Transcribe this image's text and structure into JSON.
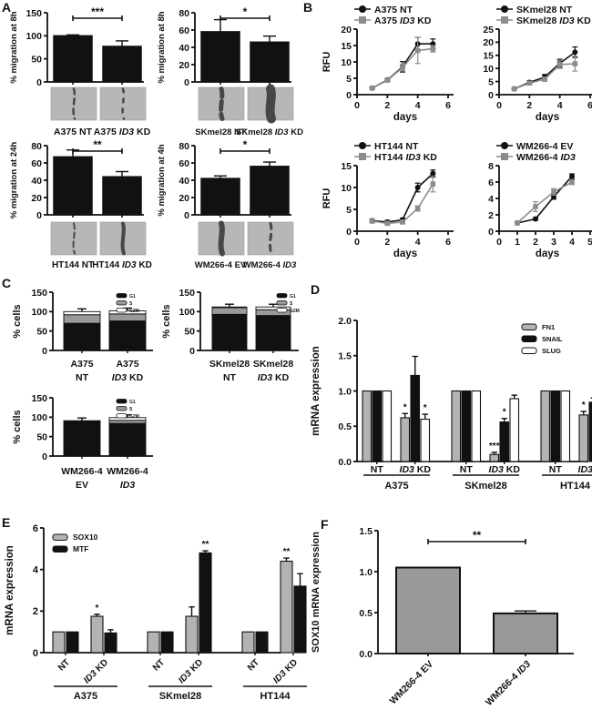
{
  "figure": {
    "panel_labels": {
      "A": "A",
      "B": "B",
      "C": "C",
      "D": "D",
      "E": "E",
      "F": "F"
    }
  },
  "chart_data": [
    {
      "panel": "A",
      "type": "bar",
      "subcharts": [
        {
          "ylabel": "% migration at 8h",
          "ylim": [
            0,
            150
          ],
          "yticks": [
            "0",
            "50",
            "100",
            "150"
          ],
          "sig": "***",
          "bars": [
            {
              "label": "A375 NT",
              "value": 100,
              "err": 2
            },
            {
              "label": "A375 ID3 KD",
              "value": 77,
              "err": 12
            }
          ],
          "images": [
            "wound-image-a375-nt",
            "wound-image-a375-id3-kd"
          ]
        },
        {
          "ylabel": "% migration at 8h",
          "ylim": [
            0,
            80
          ],
          "yticks": [
            "0",
            "20",
            "40",
            "60",
            "80"
          ],
          "sig": "*",
          "bars": [
            {
              "label": "SKmel28 NT",
              "value": 58,
              "err": 14
            },
            {
              "label": "SKmel28 ID3 KD",
              "value": 46,
              "err": 7
            }
          ],
          "images": [
            "wound-image-skmel28-nt",
            "wound-image-skmel28-id3-kd"
          ]
        },
        {
          "ylabel": "% migration at 24h",
          "ylim": [
            0,
            80
          ],
          "yticks": [
            "0",
            "20",
            "40",
            "60",
            "80"
          ],
          "sig": "**",
          "bars": [
            {
              "label": "HT144 NT",
              "value": 67,
              "err": 8
            },
            {
              "label": "HT144 ID3 KD",
              "value": 44,
              "err": 6
            }
          ],
          "images": [
            "wound-image-ht144-nt",
            "wound-image-ht144-id3-kd"
          ]
        },
        {
          "ylabel": "% migration at 4h",
          "ylim": [
            0,
            80
          ],
          "yticks": [
            "0",
            "20",
            "40",
            "60",
            "80"
          ],
          "sig": "*",
          "bars": [
            {
              "label": "WM266-4 EV",
              "value": 42,
              "err": 3
            },
            {
              "label": "WM266-4 ID3",
              "value": 56,
              "err": 5
            }
          ],
          "images": [
            "wound-image-wm266-4-ev",
            "wound-image-wm266-4-id3"
          ]
        }
      ]
    },
    {
      "panel": "B",
      "type": "line",
      "subcharts": [
        {
          "ylabel": "RFU",
          "xlabel": "days",
          "ylim": [
            0,
            20
          ],
          "yticks": [
            "0",
            "5",
            "10",
            "15",
            "20"
          ],
          "xlim": [
            0,
            6
          ],
          "xticks": [
            "0",
            "2",
            "4",
            "6"
          ],
          "series": [
            {
              "name": "A375 NT",
              "color": "#111111",
              "marker": "circle",
              "x": [
                1,
                2,
                3,
                4,
                5
              ],
              "y": [
                2.0,
                4.5,
                8.5,
                15.5,
                15.5
              ],
              "err": [
                0.3,
                0.4,
                1.6,
                2.0,
                1.5
              ]
            },
            {
              "name": "A375 ID3 KD",
              "color": "#8c8c8c",
              "marker": "square",
              "x": [
                1,
                2,
                3,
                4,
                5
              ],
              "y": [
                2.0,
                4.4,
                8.3,
                13.5,
                14.0
              ],
              "err": [
                0.3,
                0.4,
                1.0,
                4.0,
                1.0
              ]
            }
          ]
        },
        {
          "ylabel": "",
          "xlabel": "days",
          "ylim": [
            0,
            25
          ],
          "yticks": [
            "0",
            "5",
            "10",
            "15",
            "20",
            "25"
          ],
          "xlim": [
            0,
            6
          ],
          "xticks": [
            "0",
            "2",
            "4",
            "6"
          ],
          "series": [
            {
              "name": "SKmel28 NT",
              "color": "#111111",
              "marker": "circle",
              "x": [
                1,
                2,
                3,
                4,
                5
              ],
              "y": [
                2.2,
                4.7,
                6.7,
                12.0,
                16.2
              ],
              "err": [
                0.3,
                0.6,
                1.0,
                1.5,
                2.0
              ]
            },
            {
              "name": "SKmel28 ID3 KD",
              "color": "#8c8c8c",
              "marker": "square",
              "x": [
                1,
                2,
                3,
                4,
                5
              ],
              "y": [
                2.2,
                4.4,
                5.9,
                11.5,
                11.8
              ],
              "err": [
                0.3,
                0.5,
                0.8,
                1.5,
                2.8
              ]
            }
          ]
        },
        {
          "ylabel": "RFU",
          "xlabel": "days",
          "ylim": [
            0,
            15
          ],
          "yticks": [
            "0",
            "5",
            "10",
            "15"
          ],
          "xlim": [
            0,
            6
          ],
          "xticks": [
            "0",
            "2",
            "4",
            "6"
          ],
          "series": [
            {
              "name": "HT144 NT",
              "color": "#111111",
              "marker": "circle",
              "x": [
                1,
                2,
                3,
                4,
                5
              ],
              "y": [
                2.4,
                2.1,
                2.6,
                10.0,
                13.2
              ],
              "err": [
                0.4,
                0.4,
                0.4,
                1.0,
                0.8
              ]
            },
            {
              "name": "HT144 ID3 KD",
              "color": "#8c8c8c",
              "marker": "square",
              "x": [
                1,
                2,
                3,
                4,
                5
              ],
              "y": [
                2.3,
                1.8,
                2.1,
                5.2,
                10.8
              ],
              "err": [
                0.3,
                0.4,
                0.3,
                0.6,
                1.8
              ]
            }
          ]
        },
        {
          "ylabel": "",
          "xlabel": "days",
          "ylim": [
            0,
            8
          ],
          "yticks": [
            "0",
            "2",
            "4",
            "6",
            "8"
          ],
          "xlim": [
            0,
            5
          ],
          "xticks": [
            "0",
            "1",
            "2",
            "3",
            "4",
            "5"
          ],
          "series": [
            {
              "name": "WM266-4 EV",
              "color": "#111111",
              "marker": "circle",
              "x": [
                1,
                2,
                3,
                4
              ],
              "y": [
                1.0,
                1.5,
                4.2,
                6.7
              ],
              "err": [
                0.1,
                0.15,
                0.3,
                0.3
              ]
            },
            {
              "name": "WM266-4 ID3",
              "color": "#8c8c8c",
              "marker": "square",
              "x": [
                1,
                2,
                3,
                4
              ],
              "y": [
                1.0,
                3.0,
                4.8,
                6.0
              ],
              "err": [
                0.1,
                0.6,
                0.4,
                0.3
              ]
            }
          ]
        }
      ]
    },
    {
      "panel": "C",
      "type": "stacked-bar",
      "legend": [
        "G1",
        "S",
        "G2M"
      ],
      "colors": [
        "#111111",
        "#999999",
        "#ffffff"
      ],
      "subcharts": [
        {
          "ylabel": "% cells",
          "ylim": [
            0,
            150
          ],
          "yticks": [
            "0",
            "50",
            "100",
            "150"
          ],
          "bars": [
            {
              "label": [
                "A375",
                "NT"
              ],
              "values": [
                70,
                22,
                8
              ]
            },
            {
              "label": [
                "A375",
                "ID3 KD"
              ],
              "values": [
                76,
                18,
                8
              ]
            }
          ]
        },
        {
          "ylabel": "% cells",
          "ylim": [
            0,
            150
          ],
          "yticks": [
            "0",
            "50",
            "100",
            "150"
          ],
          "bars": [
            {
              "label": [
                "SKmel28",
                "NT"
              ],
              "values": [
                93,
                17,
                2
              ]
            },
            {
              "label": [
                "SKmel28",
                "ID3 KD"
              ],
              "values": [
                90,
                15,
                7
              ]
            }
          ]
        },
        {
          "ylabel": "% cells",
          "ylim": [
            0,
            150
          ],
          "yticks": [
            "0",
            "50",
            "100",
            "150"
          ],
          "bars": [
            {
              "label": [
                "WM266-4",
                "EV"
              ],
              "values": [
                87,
                2,
                2
              ]
            },
            {
              "label": [
                "WM266-4",
                "ID3"
              ],
              "values": [
                84,
                8,
                7
              ]
            }
          ]
        }
      ]
    },
    {
      "panel": "D",
      "type": "grouped-bar",
      "ylabel": "mRNA expression",
      "ylim": [
        0,
        2
      ],
      "yticks": [
        "0.0",
        "0.5",
        "1.0",
        "1.5",
        "2.0"
      ],
      "series": [
        {
          "name": "FN1",
          "fill": "#b3b3b3"
        },
        {
          "name": "SNAIL",
          "fill": "#111111"
        },
        {
          "name": "SLUG",
          "fill": "#ffffff"
        }
      ],
      "groups": [
        {
          "cell": "A375",
          "conditions": [
            {
              "label": "NT",
              "values": [
                1.0,
                1.0,
                1.0
              ],
              "errors": [
                0,
                0,
                0
              ],
              "sigs": [
                "",
                "",
                ""
              ]
            },
            {
              "label": "ID3 KD",
              "values": [
                0.62,
                1.22,
                0.6
              ],
              "errors": [
                0.06,
                0.27,
                0.07
              ],
              "sigs": [
                "*",
                "",
                "*"
              ]
            }
          ]
        },
        {
          "cell": "SKmel28",
          "conditions": [
            {
              "label": "NT",
              "values": [
                1.0,
                1.0,
                1.0
              ],
              "errors": [
                0,
                0,
                0
              ],
              "sigs": [
                "",
                "",
                ""
              ]
            },
            {
              "label": "ID3 KD",
              "values": [
                0.1,
                0.56,
                0.89
              ],
              "errors": [
                0.03,
                0.05,
                0.05
              ],
              "sigs": [
                "***",
                "*",
                ""
              ]
            }
          ]
        },
        {
          "cell": "HT144",
          "conditions": [
            {
              "label": "NT",
              "values": [
                1.0,
                1.0,
                1.0
              ],
              "errors": [
                0,
                0,
                0
              ],
              "sigs": [
                "",
                "",
                ""
              ]
            },
            {
              "label": "ID3 KD",
              "values": [
                0.66,
                0.84,
                1.1
              ],
              "errors": [
                0.05,
                0.06,
                0.14
              ],
              "sigs": [
                "*",
                "",
                ""
              ]
            }
          ]
        }
      ]
    },
    {
      "panel": "E",
      "type": "grouped-bar",
      "ylabel": "mRNA expression",
      "ylim": [
        0,
        6
      ],
      "yticks": [
        "0",
        "2",
        "4",
        "6"
      ],
      "series": [
        {
          "name": "SOX10",
          "fill": "#b3b3b3"
        },
        {
          "name": "MTF",
          "fill": "#111111"
        }
      ],
      "groups": [
        {
          "cell": "A375",
          "conditions": [
            {
              "label": "NT",
              "values": [
                1.0,
                1.0
              ],
              "errors": [
                0,
                0
              ],
              "sigs": [
                "",
                ""
              ]
            },
            {
              "label": "ID3 KD",
              "values": [
                1.75,
                0.95
              ],
              "errors": [
                0.1,
                0.15
              ],
              "sigs": [
                "*",
                ""
              ]
            }
          ]
        },
        {
          "cell": "SKmel28",
          "conditions": [
            {
              "label": "NT",
              "values": [
                1.0,
                1.0
              ],
              "errors": [
                0,
                0
              ],
              "sigs": [
                "",
                ""
              ]
            },
            {
              "label": "ID3 KD",
              "values": [
                1.75,
                4.8
              ],
              "errors": [
                0.45,
                0.1
              ],
              "sigs": [
                "",
                "**"
              ]
            }
          ]
        },
        {
          "cell": "HT144",
          "conditions": [
            {
              "label": "NT",
              "values": [
                1.0,
                1.0
              ],
              "errors": [
                0,
                0
              ],
              "sigs": [
                "",
                ""
              ]
            },
            {
              "label": "ID3 KD",
              "values": [
                4.4,
                3.2
              ],
              "errors": [
                0.15,
                0.6
              ],
              "sigs": [
                "**",
                ""
              ]
            }
          ]
        }
      ]
    },
    {
      "panel": "F",
      "type": "bar",
      "subcharts": [
        {
          "ylabel": "SOX10 mRNA expression",
          "ylim": [
            0,
            1.5
          ],
          "yticks": [
            "0.0",
            "0.5",
            "1.0",
            "1.5"
          ],
          "sig": "**",
          "fill": "#999999",
          "rotated": true,
          "bars": [
            {
              "label": "WM266-4 EV",
              "value": 1.05,
              "err": 0
            },
            {
              "label": "WM266-4 ID3",
              "value": 0.49,
              "err": 0.03
            }
          ]
        }
      ]
    }
  ]
}
